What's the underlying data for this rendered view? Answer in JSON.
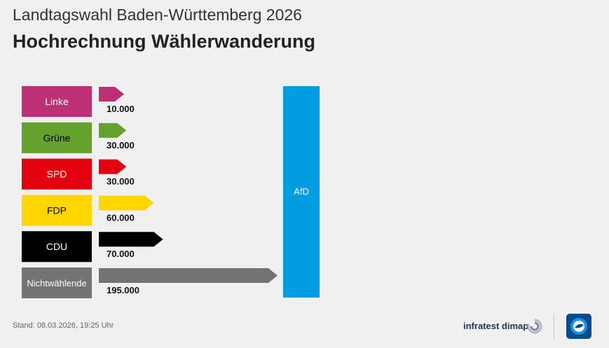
{
  "header": {
    "supertitle": "Landtagswahl Baden-Württemberg 2026",
    "title": "Hochrechnung Wählerwanderung"
  },
  "footer": {
    "stand": "Stand:  08.03.2026, 19:25 Uhr",
    "infratest_logo": "infratest dimap",
    "tagesschau_logo": "tagesschau-logo-icon"
  },
  "chart_data": {
    "type": "bar",
    "orientation": "horizontal",
    "target": {
      "label": "AfD",
      "color": "#009ee0"
    },
    "categories": [
      "Linke",
      "Grüne",
      "SPD",
      "FDP",
      "CDU",
      "Nichtwählende"
    ],
    "values": [
      10000,
      30000,
      30000,
      60000,
      70000,
      195000
    ],
    "value_labels": [
      "10.000",
      "30.000",
      "30.000",
      "60.000",
      "70.000",
      "195.000"
    ],
    "colors": [
      "#be3075",
      "#64a12d",
      "#e3000f",
      "#ffd600",
      "#000000",
      "#737373"
    ],
    "label_colors": [
      "#ffffff",
      "#000000",
      "#ffffff",
      "#000000",
      "#ffffff",
      "#ffffff"
    ],
    "arrow_colors": [
      "#be3075",
      "#64a12d",
      "#e3000f",
      "#ffd600",
      "#000000",
      "#737373"
    ]
  }
}
